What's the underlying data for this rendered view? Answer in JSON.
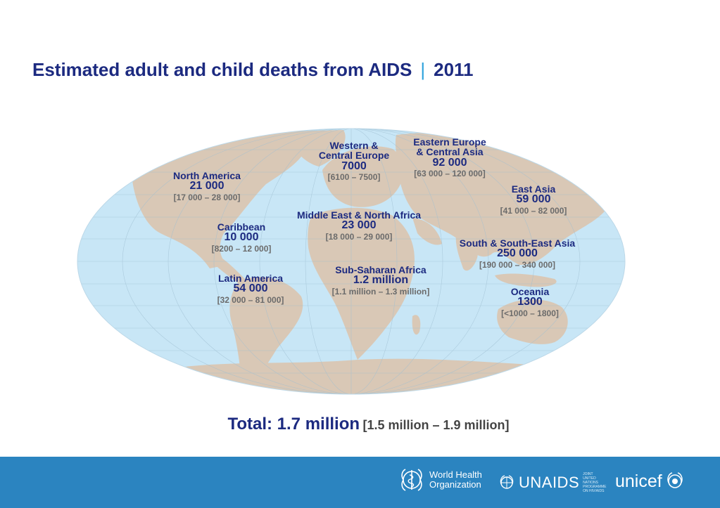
{
  "title": {
    "main": "Estimated adult and child deaths from AIDS",
    "separator": "|",
    "year": "2011"
  },
  "regions": {
    "north_america": {
      "name": "North America",
      "value": "21 000",
      "range": "[17 000 – 28 000]"
    },
    "caribbean": {
      "name": "Caribbean",
      "value": "10 000",
      "range": "[8200 – 12 000]"
    },
    "latin_america": {
      "name": "Latin America",
      "value": "54 000",
      "range": "[32 000 – 81 000]"
    },
    "western_central_europe": {
      "name1": "Western &",
      "name2": "Central Europe",
      "value": "7000",
      "range": "[6100 – 7500]"
    },
    "eastern_europe_central_asia": {
      "name1": "Eastern Europe",
      "name2": "& Central Asia",
      "value": "92 000",
      "range": "[63 000 – 120 000]"
    },
    "east_asia": {
      "name": "East Asia",
      "value": "59 000",
      "range": "[41 000 – 82 000]"
    },
    "middle_east_north_africa": {
      "name": "Middle East & North Africa",
      "value": "23 000",
      "range": "[18 000 – 29 000]"
    },
    "south_southeast_asia": {
      "name": "South & South-East Asia",
      "value": "250 000",
      "range": "[190 000 – 340 000]"
    },
    "sub_saharan_africa": {
      "name": "Sub-Saharan Africa",
      "value": "1.2 million",
      "range": "[1.1 million – 1.3 million]"
    },
    "oceania": {
      "name": "Oceania",
      "value": "1300",
      "range": "[<1000 – 1800]"
    }
  },
  "total": {
    "label": "Total: 1.7 million",
    "range": "[1.5 million – 1.9 million]"
  },
  "footer": {
    "who_line1": "World Health",
    "who_line2": "Organization",
    "unaids": "UNAIDS",
    "unaids_sub": "JOINT UNITED NATIONS PROGRAMME ON HIV/AIDS",
    "unicef": "unicef"
  },
  "colors": {
    "ocean": "#c8e6f6",
    "land": "#d9c8b6",
    "title": "#1c2a80",
    "accent": "#2aa0dc",
    "footer": "#2b84c0"
  },
  "icons": {
    "who": "who-emblem-icon",
    "un": "un-globe-icon",
    "unicef": "unicef-globe-icon"
  }
}
